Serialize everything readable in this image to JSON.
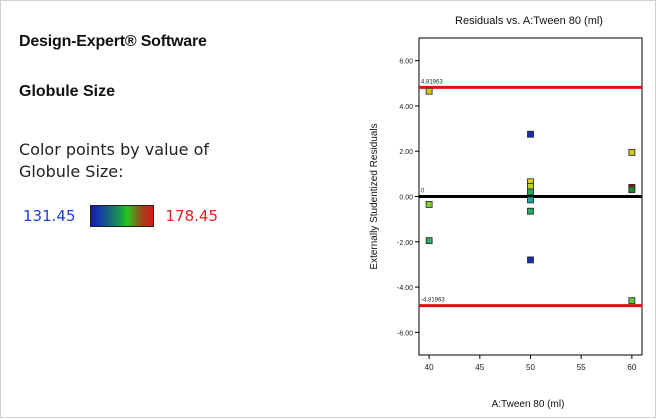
{
  "left_panel": {
    "app_title": "Design-Expert® Software",
    "response_name": "Globule Size",
    "color_caption": "Color points by value of Globule Size:",
    "scale_min": "131.45",
    "scale_max": "178.45",
    "scale_colors": {
      "low": "#1515c8",
      "mid": "#26c81e",
      "high": "#d41a1a"
    }
  },
  "chart_data": {
    "type": "scatter",
    "title": "Residuals vs. A:Tween 80 (ml)",
    "xlabel": "A:Tween 80 (ml)",
    "ylabel": "Externally Studentized Residuals",
    "xlim": [
      39,
      61
    ],
    "ylim": [
      -7,
      7
    ],
    "xticks": [
      40,
      45,
      50,
      55,
      60
    ],
    "xtick_labels": [
      "40",
      "45",
      "50",
      "55",
      "60"
    ],
    "yticks": [
      -6,
      -4,
      -2,
      0,
      2,
      4,
      6
    ],
    "ytick_labels": [
      "-6.00",
      "-4.00",
      "-2.00",
      "0.00",
      "2.00",
      "4.00",
      "6.00"
    ],
    "grid": false,
    "reference_lines": [
      {
        "y": 4.81963,
        "label": "4.81963",
        "color": "#e01010"
      },
      {
        "y": -4.81963,
        "label": "-4.81963",
        "color": "#e01010"
      },
      {
        "y": 0,
        "label": "0",
        "color": "#000000"
      }
    ],
    "points": [
      {
        "x": 40,
        "y": 4.65,
        "color": "#d6c21a"
      },
      {
        "x": 40,
        "y": -0.35,
        "color": "#7fd23a"
      },
      {
        "x": 40,
        "y": -1.95,
        "color": "#2fa86a"
      },
      {
        "x": 50,
        "y": 2.75,
        "color": "#1a2ea8"
      },
      {
        "x": 50,
        "y": 0.65,
        "color": "#d6d21a"
      },
      {
        "x": 50,
        "y": 0.45,
        "color": "#b8d22a"
      },
      {
        "x": 50,
        "y": 0.2,
        "color": "#2aa85a"
      },
      {
        "x": 50,
        "y": -0.15,
        "color": "#1aa898"
      },
      {
        "x": 50,
        "y": -0.65,
        "color": "#2aa86a"
      },
      {
        "x": 50,
        "y": -2.8,
        "color": "#1a2ea8"
      },
      {
        "x": 60,
        "y": 1.95,
        "color": "#d6c21a"
      },
      {
        "x": 60,
        "y": 0.4,
        "color": "#a01e12"
      },
      {
        "x": 60,
        "y": 0.3,
        "color": "#1f8a2a"
      },
      {
        "x": 60,
        "y": -4.6,
        "color": "#5fc842"
      }
    ]
  }
}
